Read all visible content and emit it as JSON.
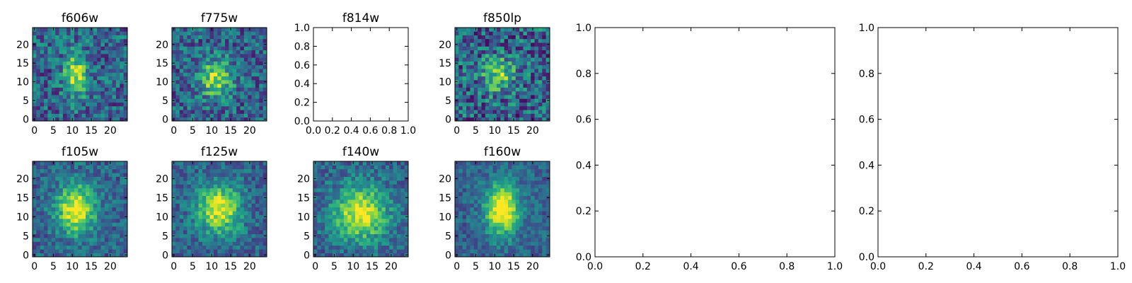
{
  "chart_data": [
    {
      "type": "heatmap",
      "title": "f606w",
      "grid": false,
      "xlim": [
        -0.5,
        24.5
      ],
      "ylim": [
        -0.5,
        24.5
      ],
      "x_ticks": [
        "0",
        "5",
        "10",
        "15",
        "20"
      ],
      "y_ticks": [
        "0",
        "5",
        "10",
        "15",
        "20"
      ],
      "center": [
        11,
        12
      ],
      "sigma": [
        2.2,
        4.2
      ],
      "peak": 0.55,
      "noise": 0.5,
      "seed": 11
    },
    {
      "type": "heatmap",
      "title": "f775w",
      "grid": false,
      "xlim": [
        -0.5,
        24.5
      ],
      "ylim": [
        -0.5,
        24.5
      ],
      "x_ticks": [
        "0",
        "5",
        "10",
        "15",
        "20"
      ],
      "y_ticks": [
        "0",
        "5",
        "10",
        "15",
        "20"
      ],
      "center": [
        11,
        11
      ],
      "sigma": [
        3.0,
        3.5
      ],
      "peak": 0.55,
      "noise": 0.5,
      "seed": 23
    },
    {
      "type": "empty",
      "title": "f814w",
      "xlim": [
        0,
        1
      ],
      "ylim": [
        0,
        1
      ],
      "x_ticks": [
        "0.0",
        "0.2",
        "0.4",
        "0.6",
        "0.8",
        "1.0"
      ],
      "y_ticks": [
        "0.0",
        "0.2",
        "0.4",
        "0.6",
        "0.8",
        "1.0"
      ]
    },
    {
      "type": "heatmap",
      "title": "f850lp",
      "grid": false,
      "xlim": [
        -0.5,
        24.5
      ],
      "ylim": [
        -0.5,
        24.5
      ],
      "x_ticks": [
        "0",
        "5",
        "10",
        "15",
        "20"
      ],
      "y_ticks": [
        "0",
        "5",
        "10",
        "15",
        "20"
      ],
      "center": [
        11,
        12
      ],
      "sigma": [
        3.0,
        3.2
      ],
      "peak": 0.45,
      "noise": 0.6,
      "seed": 37
    },
    {
      "type": "empty",
      "title": "",
      "xlim": [
        0,
        1
      ],
      "ylim": [
        0,
        1
      ],
      "x_ticks": [
        "0.0",
        "0.2",
        "0.4",
        "0.6",
        "0.8",
        "1.0"
      ],
      "y_ticks": [
        "0.0",
        "0.2",
        "0.4",
        "0.6",
        "0.8",
        "1.0"
      ]
    },
    {
      "type": "empty",
      "title": "",
      "xlim": [
        0,
        1
      ],
      "ylim": [
        0,
        1
      ],
      "x_ticks": [
        "0.0",
        "0.2",
        "0.4",
        "0.6",
        "0.8",
        "1.0"
      ],
      "y_ticks": [
        "0.0",
        "0.2",
        "0.4",
        "0.6",
        "0.8",
        "1.0"
      ]
    },
    {
      "type": "heatmap",
      "title": "f105w",
      "grid": false,
      "xlim": [
        -0.5,
        24.5
      ],
      "ylim": [
        -0.5,
        24.5
      ],
      "x_ticks": [
        "0",
        "5",
        "10",
        "15",
        "20"
      ],
      "y_ticks": [
        "0",
        "5",
        "10",
        "15",
        "20"
      ],
      "center": [
        11,
        12
      ],
      "sigma": [
        3.5,
        4.5
      ],
      "peak": 0.7,
      "noise": 0.35,
      "seed": 41
    },
    {
      "type": "heatmap",
      "title": "f125w",
      "grid": false,
      "xlim": [
        -0.5,
        24.5
      ],
      "ylim": [
        -0.5,
        24.5
      ],
      "x_ticks": [
        "0",
        "5",
        "10",
        "15",
        "20"
      ],
      "y_ticks": [
        "0",
        "5",
        "10",
        "15",
        "20"
      ],
      "center": [
        12,
        12
      ],
      "sigma": [
        4.0,
        4.5
      ],
      "peak": 0.65,
      "noise": 0.35,
      "seed": 53
    },
    {
      "type": "heatmap",
      "title": "f140w",
      "grid": false,
      "xlim": [
        -0.5,
        24.5
      ],
      "ylim": [
        -0.5,
        24.5
      ],
      "x_ticks": [
        "0",
        "5",
        "10",
        "15",
        "20"
      ],
      "y_ticks": [
        "0",
        "5",
        "10",
        "15",
        "20"
      ],
      "center": [
        12,
        11
      ],
      "sigma": [
        5.0,
        5.0
      ],
      "peak": 0.65,
      "noise": 0.35,
      "seed": 67
    },
    {
      "type": "heatmap",
      "title": "f160w",
      "grid": false,
      "xlim": [
        -0.5,
        24.5
      ],
      "ylim": [
        -0.5,
        24.5
      ],
      "x_ticks": [
        "0",
        "5",
        "10",
        "15",
        "20"
      ],
      "y_ticks": [
        "0",
        "5",
        "10",
        "15",
        "20"
      ],
      "center": [
        12,
        12
      ],
      "sigma": [
        3.0,
        4.5
      ],
      "peak": 0.8,
      "noise": 0.3,
      "seed": 79
    }
  ],
  "colormap": "viridis"
}
